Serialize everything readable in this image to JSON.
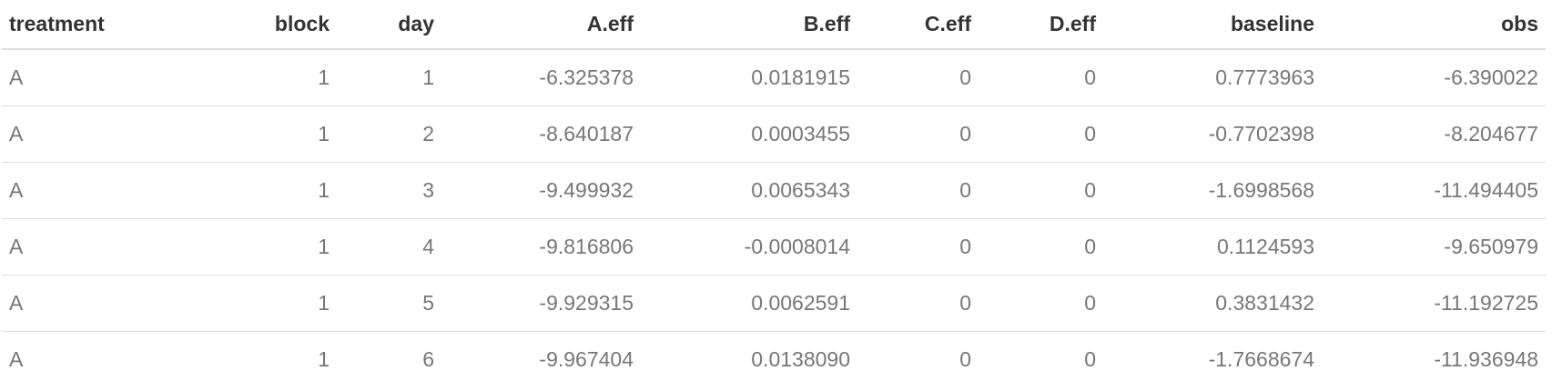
{
  "table": {
    "columns": [
      {
        "label": "treatment",
        "align": "left"
      },
      {
        "label": "block",
        "align": "right"
      },
      {
        "label": "day",
        "align": "right"
      },
      {
        "label": "A.eff",
        "align": "right"
      },
      {
        "label": "B.eff",
        "align": "right"
      },
      {
        "label": "C.eff",
        "align": "right"
      },
      {
        "label": "D.eff",
        "align": "right"
      },
      {
        "label": "baseline",
        "align": "right"
      },
      {
        "label": "obs",
        "align": "right"
      }
    ],
    "rows": [
      [
        "A",
        "1",
        "1",
        "-6.325378",
        "0.0181915",
        "0",
        "0",
        "0.7773963",
        "-6.390022"
      ],
      [
        "A",
        "1",
        "2",
        "-8.640187",
        "0.0003455",
        "0",
        "0",
        "-0.7702398",
        "-8.204677"
      ],
      [
        "A",
        "1",
        "3",
        "-9.499932",
        "0.0065343",
        "0",
        "0",
        "-1.6998568",
        "-11.494405"
      ],
      [
        "A",
        "1",
        "4",
        "-9.816806",
        "-0.0008014",
        "0",
        "0",
        "0.1124593",
        "-9.650979"
      ],
      [
        "A",
        "1",
        "5",
        "-9.929315",
        "0.0062591",
        "0",
        "0",
        "0.3831432",
        "-11.192725"
      ],
      [
        "A",
        "1",
        "6",
        "-9.967404",
        "0.0138090",
        "0",
        "0",
        "-1.7668674",
        "-11.936948"
      ]
    ]
  }
}
